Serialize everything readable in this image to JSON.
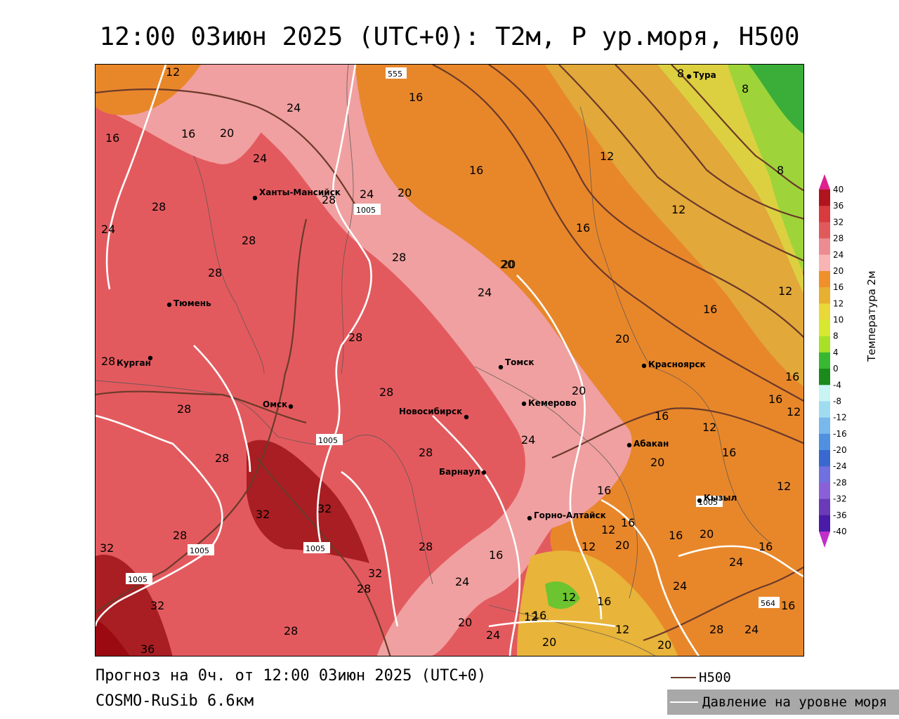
{
  "title": "12:00 03июн 2025 (UTC+0): T2м, P ур.моря, H500",
  "footer": {
    "forecast": "Прогноз на 0ч. от 12:00 03июн 2025 (UTC+0)",
    "model": "COSMO-RuSib 6.6км"
  },
  "legend": {
    "h500": "H500",
    "pressure": "Давление на уровне моря"
  },
  "colorbar": {
    "title": "Температура 2м",
    "ticks": [
      "40",
      "36",
      "32",
      "28",
      "24",
      "20",
      "16",
      "12",
      "10",
      "8",
      "4",
      "0",
      "-4",
      "-8",
      "-12",
      "-16",
      "-20",
      "-24",
      "-28",
      "-32",
      "-36",
      "-40"
    ],
    "colors": [
      "#b0141c",
      "#d83a3e",
      "#e05a5c",
      "#ec8c90",
      "#f8b4b4",
      "#f0902a",
      "#e8b030",
      "#e8d838",
      "#d8e830",
      "#a8e028",
      "#38b830",
      "#1a8a1a",
      "#c8f4f4",
      "#a0dcf0",
      "#78b8ec",
      "#5090e0",
      "#3868d0",
      "#7070e0",
      "#8a60d8",
      "#6a3ab8",
      "#4a1aa8",
      "#2a0a98"
    ]
  },
  "cities": [
    {
      "name": "Ханты-Мансийск"
    },
    {
      "name": "Тюмень"
    },
    {
      "name": "Курган"
    },
    {
      "name": "Омск"
    },
    {
      "name": "Новосибирск"
    },
    {
      "name": "Томск"
    },
    {
      "name": "Кемерово"
    },
    {
      "name": "Барнаул"
    },
    {
      "name": "Горно-Алтайск"
    },
    {
      "name": "Абакан"
    },
    {
      "name": "Красноярск"
    },
    {
      "name": "Кызыл"
    },
    {
      "name": "Тура"
    }
  ],
  "temp_labels": [
    "12",
    "16",
    "20",
    "24",
    "28",
    "32",
    "36",
    "8"
  ],
  "isobar_labels": [
    "1005",
    "555",
    "564"
  ]
}
